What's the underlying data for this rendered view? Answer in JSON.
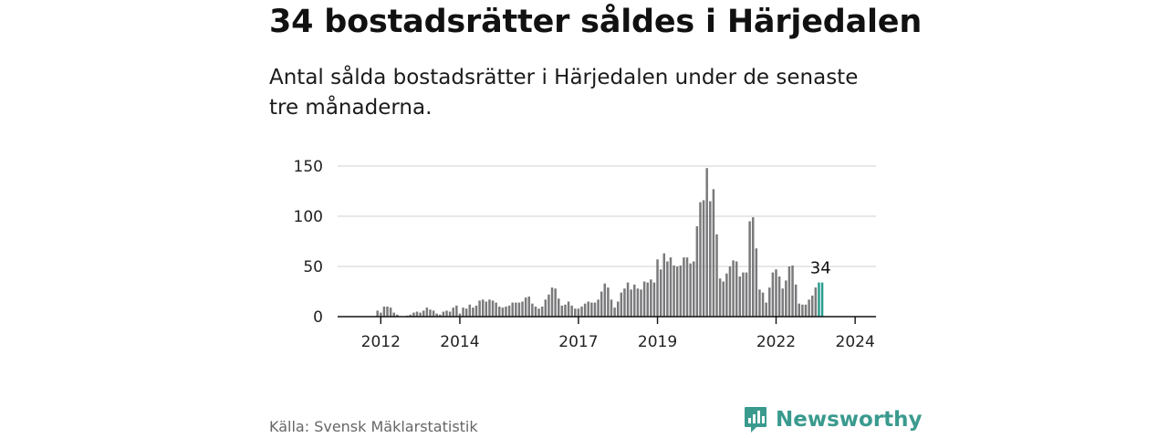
{
  "header": {
    "title": "34 bostadsrätter såldes i Härjedalen",
    "subtitle": "Antal sålda bostadsrätter i Härjedalen under de senaste tre månaderna."
  },
  "footer": {
    "source": "Källa: Svensk Mäklarstatistik",
    "brand": "Newsworthy"
  },
  "colors": {
    "bar": "#7a7a7c",
    "highlight": "#2a9d8f",
    "grid": "#d9d9d9",
    "axis": "#111111",
    "brand": "#3a9a8e"
  },
  "chart_data": {
    "type": "bar",
    "title": "34 bostadsrätter såldes i Härjedalen",
    "xlabel": "",
    "ylabel": "",
    "ylim": [
      0,
      150
    ],
    "yticks": [
      "0",
      "50",
      "100",
      "150"
    ],
    "xticks": [
      {
        "label": "2012",
        "index": 5
      },
      {
        "label": "2014",
        "index": 29
      },
      {
        "label": "2017",
        "index": 65
      },
      {
        "label": "2019",
        "index": 89
      },
      {
        "label": "2022",
        "index": 125
      },
      {
        "label": "2024",
        "index": 149
      }
    ],
    "last_label": "34",
    "highlight_count": 2,
    "grid": true,
    "values": [
      0,
      0,
      0,
      0,
      6,
      4,
      10,
      10,
      9,
      4,
      2,
      0,
      0,
      1,
      2,
      4,
      5,
      4,
      6,
      9,
      7,
      6,
      3,
      2,
      5,
      6,
      5,
      9,
      11,
      3,
      9,
      8,
      12,
      9,
      11,
      16,
      17,
      15,
      17,
      16,
      14,
      10,
      9,
      10,
      11,
      14,
      14,
      14,
      15,
      19,
      20,
      13,
      10,
      8,
      10,
      17,
      22,
      29,
      28,
      18,
      11,
      12,
      15,
      11,
      8,
      8,
      10,
      13,
      15,
      14,
      14,
      17,
      25,
      33,
      29,
      17,
      9,
      15,
      24,
      28,
      34,
      27,
      32,
      28,
      27,
      35,
      34,
      37,
      34,
      57,
      47,
      63,
      55,
      59,
      51,
      50,
      51,
      59,
      59,
      53,
      55,
      90,
      114,
      116,
      148,
      115,
      127,
      82,
      38,
      35,
      43,
      50,
      56,
      55,
      40,
      44,
      44,
      95,
      99,
      68,
      27,
      24,
      14,
      29,
      44,
      47,
      40,
      28,
      36,
      50,
      51,
      32,
      13,
      12,
      12,
      17,
      21,
      29,
      34,
      34
    ]
  }
}
